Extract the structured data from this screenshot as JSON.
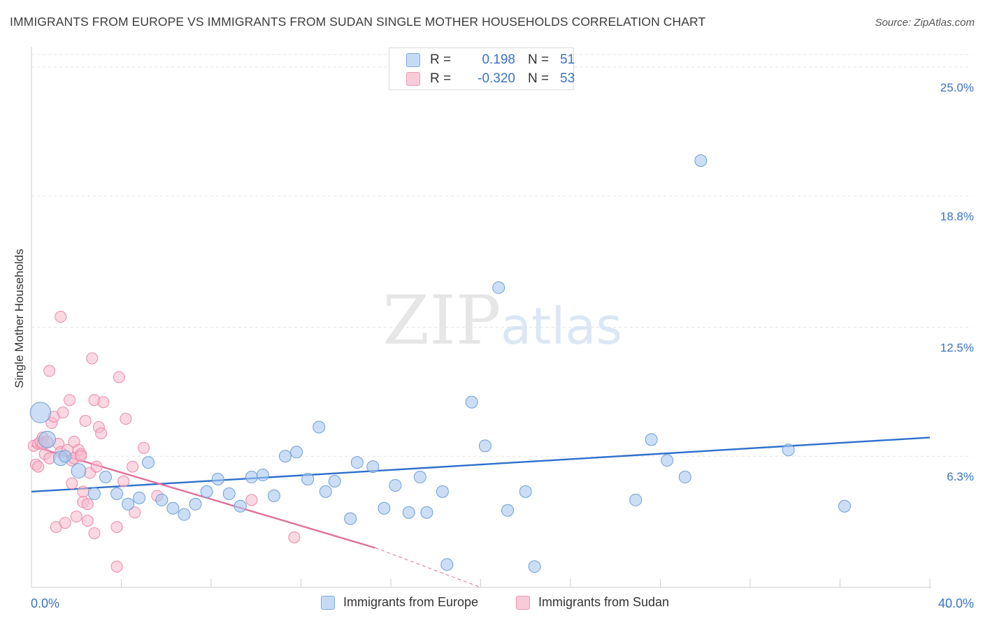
{
  "header": {
    "title": "IMMIGRANTS FROM EUROPE VS IMMIGRANTS FROM SUDAN SINGLE MOTHER HOUSEHOLDS CORRELATION CHART",
    "source": "Source: ZipAtlas.com"
  },
  "watermark": {
    "zip": "ZIP",
    "atlas": "atlas"
  },
  "colors": {
    "europe_fill": "#a9c8ee",
    "europe_stroke": "#6f9fd9",
    "europe_line": "#2f6fcb",
    "sudan_fill": "#f7b8cb",
    "sudan_stroke": "#e98aaa",
    "sudan_line": "#e0709a",
    "tick_label": "#3a72c8",
    "grid": "#e3e3e3"
  },
  "legend_top": {
    "rows": [
      {
        "r_label": "R =",
        "r_value": "0.198",
        "n_label": "N =",
        "n_value": "51"
      },
      {
        "r_label": "R =",
        "r_value": "-0.320",
        "n_label": "N =",
        "n_value": "53"
      }
    ]
  },
  "legend_bottom": {
    "europe": "Immigrants from Europe",
    "sudan": "Immigrants from Sudan"
  },
  "chart_data": {
    "type": "scatter",
    "title": "IMMIGRANTS FROM EUROPE VS IMMIGRANTS FROM SUDAN SINGLE MOTHER HOUSEHOLDS CORRELATION CHART",
    "xlabel": "",
    "ylabel": "Single Mother Households",
    "xlim": [
      0,
      40
    ],
    "ylim": [
      0,
      25.6
    ],
    "x_tick_labels": [
      "0.0%",
      "40.0%"
    ],
    "y_ticks": [
      6.3,
      12.5,
      18.8,
      25.0
    ],
    "y_tick_labels": [
      "6.3%",
      "12.5%",
      "18.8%",
      "25.0%"
    ],
    "grid": "horizontal dashed",
    "legend_placement": "top-center and bottom",
    "series": [
      {
        "name": "Immigrants from Europe",
        "r": 0.198,
        "n": 51,
        "trend": {
          "x": [
            0,
            40
          ],
          "y": [
            4.6,
            7.2
          ]
        },
        "points": [
          [
            0.4,
            8.4,
            3
          ],
          [
            0.7,
            7.1,
            2
          ],
          [
            1.3,
            6.2,
            1.5
          ],
          [
            1.5,
            6.3,
            1
          ],
          [
            2.1,
            5.6,
            1.5
          ],
          [
            2.8,
            4.5,
            1
          ],
          [
            3.3,
            5.3,
            1
          ],
          [
            3.8,
            4.5,
            1
          ],
          [
            4.3,
            4.0,
            1
          ],
          [
            4.8,
            4.3,
            1
          ],
          [
            5.2,
            6.0,
            1
          ],
          [
            5.8,
            4.2,
            1
          ],
          [
            6.3,
            3.8,
            1
          ],
          [
            6.8,
            3.5,
            1
          ],
          [
            7.3,
            4.0,
            1
          ],
          [
            7.8,
            4.6,
            1
          ],
          [
            8.3,
            5.2,
            1
          ],
          [
            8.8,
            4.5,
            1
          ],
          [
            9.3,
            3.9,
            1
          ],
          [
            9.8,
            5.3,
            1
          ],
          [
            10.3,
            5.4,
            1
          ],
          [
            10.8,
            4.4,
            1
          ],
          [
            11.3,
            6.3,
            1
          ],
          [
            11.8,
            6.5,
            1
          ],
          [
            12.3,
            5.2,
            1
          ],
          [
            12.8,
            7.7,
            1
          ],
          [
            13.1,
            4.6,
            1
          ],
          [
            13.5,
            5.1,
            1
          ],
          [
            14.2,
            3.3,
            1
          ],
          [
            14.5,
            6.0,
            1
          ],
          [
            15.2,
            5.8,
            1
          ],
          [
            15.7,
            3.8,
            1
          ],
          [
            16.2,
            4.9,
            1
          ],
          [
            16.8,
            3.6,
            1
          ],
          [
            17.3,
            5.3,
            1
          ],
          [
            17.6,
            3.6,
            1
          ],
          [
            18.3,
            4.6,
            1
          ],
          [
            18.5,
            1.1,
            1
          ],
          [
            19.6,
            8.9,
            1
          ],
          [
            20.2,
            6.8,
            1
          ],
          [
            20.8,
            14.4,
            1
          ],
          [
            21.2,
            3.7,
            1
          ],
          [
            22.0,
            4.6,
            1
          ],
          [
            22.4,
            1.0,
            1
          ],
          [
            26.9,
            4.2,
            1
          ],
          [
            27.6,
            7.1,
            1
          ],
          [
            28.3,
            6.1,
            1
          ],
          [
            29.1,
            5.3,
            1
          ],
          [
            29.8,
            20.5,
            1
          ],
          [
            33.7,
            6.6,
            1
          ],
          [
            36.2,
            3.9,
            1
          ]
        ]
      },
      {
        "name": "Immigrants from Sudan",
        "r": -0.32,
        "n": 53,
        "trend": {
          "x": [
            0,
            15.3
          ],
          "y": [
            6.8,
            1.9
          ]
        },
        "trend_extension": {
          "x": [
            15.3,
            20.0
          ],
          "y": [
            1.9,
            0.0
          ]
        },
        "points": [
          [
            0.1,
            6.8,
            1
          ],
          [
            0.2,
            5.9,
            1
          ],
          [
            0.3,
            5.8,
            1
          ],
          [
            0.3,
            6.9,
            1
          ],
          [
            0.4,
            7.0,
            1
          ],
          [
            0.5,
            7.2,
            1
          ],
          [
            0.5,
            6.9,
            1
          ],
          [
            0.6,
            6.4,
            1
          ],
          [
            0.7,
            7.0,
            1
          ],
          [
            0.8,
            6.2,
            1
          ],
          [
            0.8,
            10.4,
            1
          ],
          [
            0.9,
            7.9,
            1
          ],
          [
            1.0,
            8.2,
            1
          ],
          [
            1.1,
            2.9,
            1
          ],
          [
            1.2,
            6.9,
            1
          ],
          [
            1.3,
            6.5,
            1
          ],
          [
            1.3,
            13.0,
            1
          ],
          [
            1.4,
            8.4,
            1
          ],
          [
            1.5,
            3.1,
            1
          ],
          [
            1.6,
            6.6,
            1
          ],
          [
            1.7,
            9.0,
            1
          ],
          [
            1.8,
            5.0,
            1
          ],
          [
            1.8,
            6.1,
            1
          ],
          [
            1.9,
            7.0,
            1
          ],
          [
            1.9,
            6.2,
            1
          ],
          [
            2.0,
            3.4,
            1
          ],
          [
            2.1,
            6.6,
            1
          ],
          [
            2.2,
            6.4,
            1
          ],
          [
            2.2,
            6.3,
            1
          ],
          [
            2.3,
            4.6,
            1
          ],
          [
            2.3,
            4.1,
            1
          ],
          [
            2.4,
            8.0,
            1
          ],
          [
            2.5,
            3.2,
            1
          ],
          [
            2.5,
            4.0,
            1
          ],
          [
            2.6,
            5.5,
            1
          ],
          [
            2.7,
            11.0,
            1
          ],
          [
            2.8,
            2.6,
            1
          ],
          [
            2.8,
            9.0,
            1
          ],
          [
            2.9,
            5.8,
            1
          ],
          [
            3.0,
            7.7,
            1
          ],
          [
            3.1,
            7.4,
            1
          ],
          [
            3.2,
            8.9,
            1
          ],
          [
            3.8,
            2.9,
            1
          ],
          [
            3.8,
            1.0,
            1
          ],
          [
            3.9,
            10.1,
            1
          ],
          [
            4.1,
            5.1,
            1
          ],
          [
            4.2,
            8.1,
            1
          ],
          [
            4.5,
            5.8,
            1
          ],
          [
            4.6,
            3.6,
            1
          ],
          [
            5.0,
            6.7,
            1
          ],
          [
            5.6,
            4.4,
            1
          ],
          [
            9.8,
            4.2,
            1
          ],
          [
            11.7,
            2.4,
            1
          ]
        ]
      }
    ]
  }
}
